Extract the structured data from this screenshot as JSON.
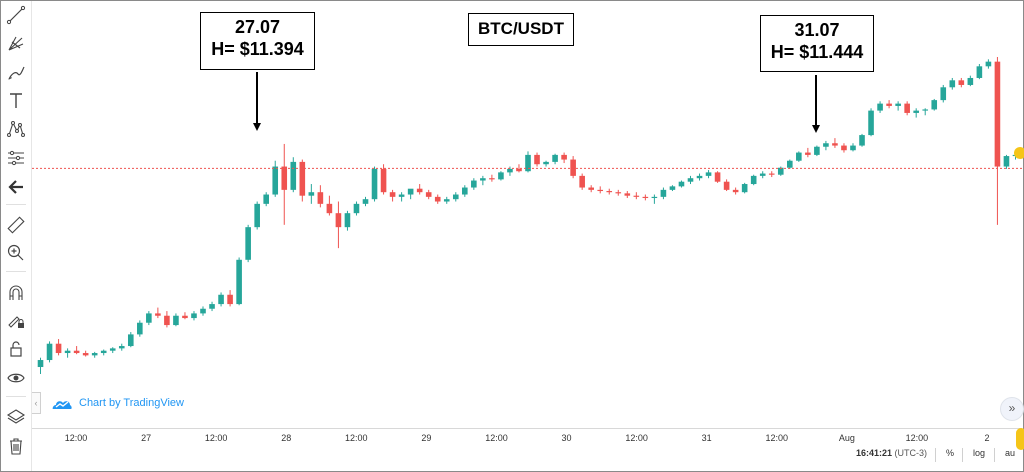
{
  "title": "BTC/USDT",
  "callouts": [
    {
      "date": "27.07",
      "label": "H= $11.394"
    },
    {
      "date": "31.07",
      "label": "H= $11.444"
    }
  ],
  "brand_text": "Chart by TradingView",
  "x_tick_labels": [
    "12:00",
    "27",
    "12:00",
    "28",
    "12:00",
    "29",
    "12:00",
    "30",
    "12:00",
    "31",
    "12:00",
    "Aug",
    "12:00",
    "2"
  ],
  "status_bar": {
    "time": "16:41:21",
    "timezone": "(UTC-3)",
    "percent": "%",
    "log": "log",
    "auto": "au"
  },
  "toolbar_icons": [
    "trend-line-icon",
    "pitchfork-icon",
    "brush-icon",
    "text-icon",
    "pattern-icon",
    "forecast-icon",
    "back-arrow-icon",
    "ruler-icon",
    "zoom-in-icon",
    "magnet-icon",
    "lock-drawing-icon",
    "unlock-icon",
    "eye-icon",
    "layers-icon",
    "trash-icon"
  ],
  "colors": {
    "up": "#26a69a",
    "down": "#ef5350",
    "dotted_line": "#ef5350",
    "brand": "#2196f3"
  },
  "chart_data": {
    "type": "candlestick",
    "title": "BTC/USDT",
    "x_axis": {
      "ticks": [
        "12:00",
        "27",
        "12:00",
        "28",
        "12:00",
        "29",
        "12:00",
        "30",
        "12:00",
        "31",
        "12:00",
        "Aug",
        "12:00",
        "2"
      ]
    },
    "y_axis": {
      "visible": false
    },
    "grid": false,
    "highs_marked": [
      {
        "date": "27.07",
        "high": 11394
      },
      {
        "date": "31.07",
        "high": 11444
      }
    ],
    "series": [
      {
        "name": "BTC/USDT",
        "values": [
          [
            9480,
            9560,
            9420,
            9540
          ],
          [
            9540,
            9700,
            9520,
            9680
          ],
          [
            9680,
            9720,
            9580,
            9600
          ],
          [
            9600,
            9640,
            9560,
            9620
          ],
          [
            9620,
            9660,
            9590,
            9600
          ],
          [
            9600,
            9620,
            9570,
            9580
          ],
          [
            9580,
            9610,
            9560,
            9600
          ],
          [
            9600,
            9630,
            9580,
            9620
          ],
          [
            9620,
            9650,
            9600,
            9640
          ],
          [
            9640,
            9680,
            9620,
            9660
          ],
          [
            9660,
            9780,
            9650,
            9760
          ],
          [
            9760,
            9880,
            9740,
            9860
          ],
          [
            9860,
            9960,
            9840,
            9940
          ],
          [
            9940,
            9990,
            9900,
            9920
          ],
          [
            9920,
            9960,
            9820,
            9840
          ],
          [
            9840,
            9940,
            9830,
            9920
          ],
          [
            9920,
            9950,
            9890,
            9900
          ],
          [
            9900,
            9960,
            9880,
            9940
          ],
          [
            9940,
            10000,
            9920,
            9980
          ],
          [
            9980,
            10040,
            9960,
            10020
          ],
          [
            10020,
            10120,
            10000,
            10100
          ],
          [
            10100,
            10140,
            10000,
            10020
          ],
          [
            10020,
            10420,
            10010,
            10400
          ],
          [
            10400,
            10700,
            10380,
            10680
          ],
          [
            10680,
            10900,
            10660,
            10880
          ],
          [
            10880,
            10980,
            10860,
            10960
          ],
          [
            10960,
            11250,
            10940,
            11200
          ],
          [
            11200,
            11394,
            10700,
            11000
          ],
          [
            11000,
            11280,
            10980,
            11240
          ],
          [
            11240,
            11260,
            10900,
            10950
          ],
          [
            10950,
            11050,
            10880,
            10980
          ],
          [
            10980,
            11040,
            10850,
            10880
          ],
          [
            10880,
            10950,
            10780,
            10800
          ],
          [
            10800,
            10900,
            10500,
            10680
          ],
          [
            10680,
            10820,
            10650,
            10800
          ],
          [
            10800,
            10900,
            10780,
            10880
          ],
          [
            10880,
            10940,
            10860,
            10920
          ],
          [
            10920,
            11200,
            10900,
            11180
          ],
          [
            11180,
            11220,
            10960,
            10980
          ],
          [
            10980,
            11000,
            10900,
            10940
          ],
          [
            10940,
            10980,
            10900,
            10960
          ],
          [
            10960,
            11000,
            10920,
            11010
          ],
          [
            11010,
            11050,
            10960,
            10980
          ],
          [
            10980,
            11000,
            10920,
            10940
          ],
          [
            10940,
            10960,
            10880,
            10900
          ],
          [
            10900,
            10940,
            10880,
            10920
          ],
          [
            10920,
            10980,
            10900,
            10960
          ],
          [
            10960,
            11040,
            10940,
            11020
          ],
          [
            11020,
            11100,
            11000,
            11080
          ],
          [
            11080,
            11120,
            11040,
            11100
          ],
          [
            11100,
            11130,
            11070,
            11090
          ],
          [
            11090,
            11160,
            11080,
            11150
          ],
          [
            11150,
            11200,
            11120,
            11180
          ],
          [
            11180,
            11220,
            11150,
            11160
          ],
          [
            11160,
            11330,
            11150,
            11300
          ],
          [
            11300,
            11320,
            11200,
            11220
          ],
          [
            11220,
            11250,
            11200,
            11240
          ],
          [
            11240,
            11310,
            11220,
            11300
          ],
          [
            11300,
            11320,
            11230,
            11260
          ],
          [
            11260,
            11290,
            11100,
            11120
          ],
          [
            11120,
            11140,
            11000,
            11020
          ],
          [
            11020,
            11040,
            10980,
            11000
          ],
          [
            11000,
            11030,
            10970,
            10990
          ],
          [
            10990,
            11010,
            10960,
            10980
          ],
          [
            10980,
            11000,
            10950,
            10970
          ],
          [
            10970,
            10990,
            10930,
            10950
          ],
          [
            10950,
            10980,
            10920,
            10940
          ],
          [
            10940,
            10960,
            10910,
            10930
          ],
          [
            10930,
            10960,
            10880,
            10940
          ],
          [
            10940,
            11020,
            10920,
            11000
          ],
          [
            11000,
            11040,
            10990,
            11030
          ],
          [
            11030,
            11080,
            11020,
            11070
          ],
          [
            11070,
            11120,
            11050,
            11100
          ],
          [
            11100,
            11140,
            11080,
            11120
          ],
          [
            11120,
            11170,
            11100,
            11150
          ],
          [
            11150,
            11160,
            11060,
            11070
          ],
          [
            11070,
            11090,
            10990,
            11000
          ],
          [
            11000,
            11020,
            10960,
            10980
          ],
          [
            10980,
            11060,
            10970,
            11050
          ],
          [
            11050,
            11130,
            11040,
            11120
          ],
          [
            11120,
            11160,
            11100,
            11140
          ],
          [
            11140,
            11160,
            11110,
            11130
          ],
          [
            11130,
            11200,
            11120,
            11190
          ],
          [
            11190,
            11260,
            11180,
            11250
          ],
          [
            11250,
            11330,
            11240,
            11320
          ],
          [
            11320,
            11360,
            11280,
            11300
          ],
          [
            11300,
            11380,
            11290,
            11370
          ],
          [
            11370,
            11420,
            11340,
            11400
          ],
          [
            11400,
            11444,
            11360,
            11380
          ],
          [
            11380,
            11400,
            11320,
            11340
          ],
          [
            11340,
            11400,
            11330,
            11380
          ],
          [
            11380,
            11480,
            11370,
            11470
          ],
          [
            11470,
            11700,
            11460,
            11680
          ],
          [
            11680,
            11760,
            11660,
            11740
          ],
          [
            11740,
            11770,
            11700,
            11720
          ],
          [
            11720,
            11760,
            11680,
            11740
          ],
          [
            11740,
            11760,
            11640,
            11660
          ],
          [
            11660,
            11700,
            11620,
            11680
          ],
          [
            11680,
            11700,
            11640,
            11690
          ],
          [
            11690,
            11780,
            11680,
            11770
          ],
          [
            11770,
            11900,
            11750,
            11880
          ],
          [
            11880,
            11960,
            11860,
            11940
          ],
          [
            11940,
            11960,
            11880,
            11900
          ],
          [
            11900,
            11980,
            11890,
            11960
          ],
          [
            11960,
            12080,
            11950,
            12060
          ],
          [
            12060,
            12120,
            12040,
            12100
          ],
          [
            12100,
            12140,
            10700,
            11200
          ],
          [
            11200,
            11300,
            11180,
            11290
          ],
          [
            11290,
            11320,
            11260,
            11300
          ]
        ]
      }
    ]
  }
}
